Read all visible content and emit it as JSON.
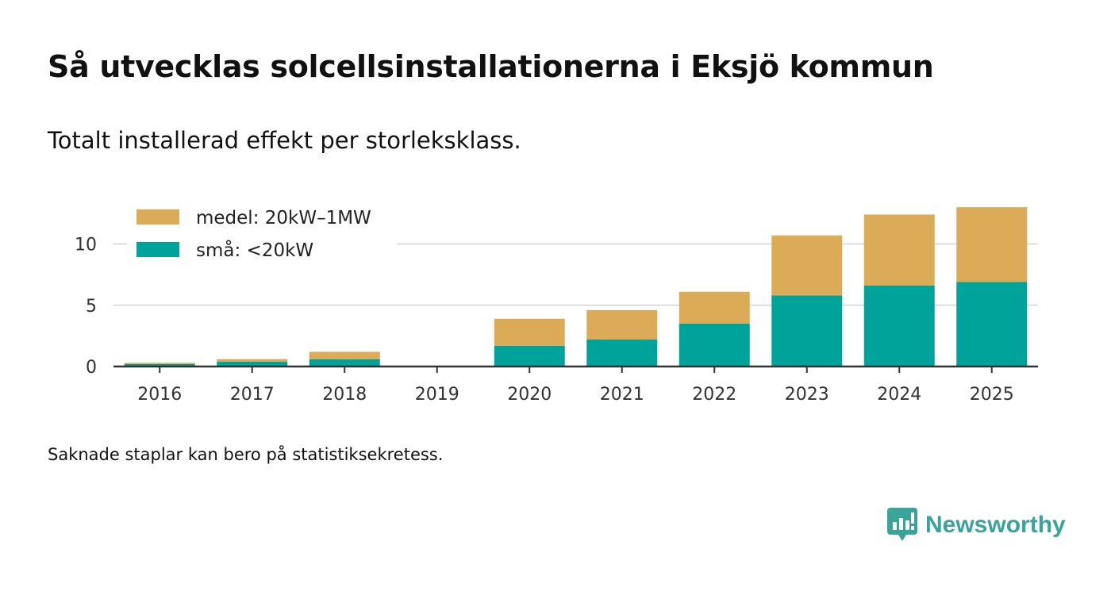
{
  "title": "Så utvecklas solcellsinstallationerna i Eksjö kommun",
  "subtitle": "Totalt installerad effekt per storleksklass.",
  "footnote": "Saknade staplar kan bero på statistiksekretess.",
  "brand": {
    "name": "Newsworthy",
    "icon": "newsworthy-logo-icon",
    "color": "#3aa39a"
  },
  "chart_data": {
    "type": "bar",
    "stacked": true,
    "title": "Så utvecklas solcellsinstallationerna i Eksjö kommun",
    "xlabel": "",
    "ylabel": "",
    "categories": [
      "2016",
      "2017",
      "2018",
      "2019",
      "2020",
      "2021",
      "2022",
      "2023",
      "2024",
      "2025"
    ],
    "series": [
      {
        "name": "små: <20kW",
        "color": "#00a39a",
        "values": [
          0.2,
          0.4,
          0.6,
          null,
          1.7,
          2.2,
          3.5,
          5.8,
          6.6,
          6.9
        ]
      },
      {
        "name": "medel: 20kW–1MW",
        "color": "#dbab58",
        "values": [
          0.1,
          0.2,
          0.6,
          null,
          2.2,
          2.4,
          2.6,
          4.9,
          5.8,
          6.1
        ]
      }
    ],
    "legend_order": [
      "medel: 20kW–1MW",
      "små: <20kW"
    ],
    "legend_position": "top-left",
    "ylim": [
      0,
      13
    ],
    "yticks": [
      0,
      5,
      10
    ],
    "grid": true
  }
}
